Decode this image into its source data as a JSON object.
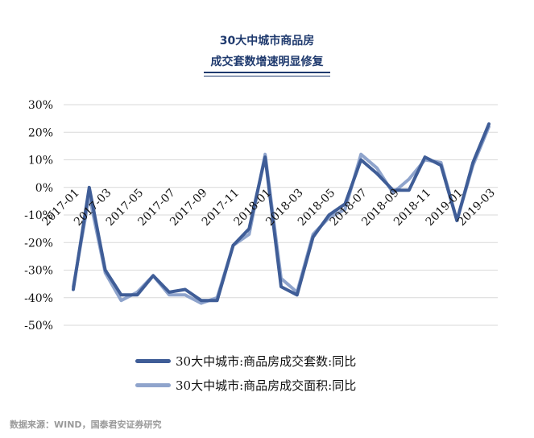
{
  "header": {
    "title_line1": "30大中城市商品房",
    "title_line2": "成交套数增速明显修复"
  },
  "colors": {
    "series1": "#3f5d97",
    "series2": "#8fa4cc",
    "title": "#1f3a6e",
    "grid": "#d9d9d9"
  },
  "chart_data": {
    "type": "line",
    "title": "30大中城市商品房成交套数增速明显修复",
    "xlabel": "",
    "ylabel": "",
    "ylim": [
      -50,
      30
    ],
    "y_ticks": [
      "30%",
      "20%",
      "10%",
      "0%",
      "-10%",
      "-20%",
      "-30%",
      "-40%",
      "-50%"
    ],
    "x": [
      "2017-01",
      "2017-02",
      "2017-03",
      "2017-04",
      "2017-05",
      "2017-06",
      "2017-07",
      "2017-08",
      "2017-09",
      "2017-10",
      "2017-11",
      "2017-12",
      "2018-01",
      "2018-02",
      "2018-03",
      "2018-04",
      "2018-05",
      "2018-06",
      "2018-07",
      "2018-08",
      "2018-09",
      "2018-10",
      "2018-11",
      "2018-12",
      "2019-01",
      "2019-02",
      "2019-03"
    ],
    "x_tick_labels": [
      "2017-01",
      "2017-03",
      "2017-05",
      "2017-07",
      "2017-09",
      "2017-11",
      "2018-01",
      "2018-03",
      "2018-05",
      "2018-07",
      "2018-09",
      "2018-11",
      "2019-01",
      "2019-03"
    ],
    "grid": true,
    "legend_position": "bottom",
    "series": [
      {
        "name": "30大中城市:商品房成交套数:同比",
        "values": [
          -37,
          0,
          -30,
          -39,
          -39,
          -32,
          -38,
          -37,
          -41,
          -41,
          -21,
          -15,
          11,
          -36,
          -39,
          -18,
          -10,
          -6,
          10,
          5,
          -1,
          -1,
          11,
          8,
          -12,
          9,
          23
        ]
      },
      {
        "name": "30大中城市:商品房成交面积:同比",
        "values": [
          -36,
          -3,
          -31,
          -41,
          -38,
          -32,
          -39,
          -39,
          -42,
          -40,
          -21,
          -17,
          12,
          -33,
          -38,
          -17,
          -11,
          -8,
          12,
          7,
          -2,
          3,
          10,
          9,
          -12,
          8,
          22
        ]
      }
    ]
  },
  "source": "数据来源：WIND，国泰君安证券研究"
}
